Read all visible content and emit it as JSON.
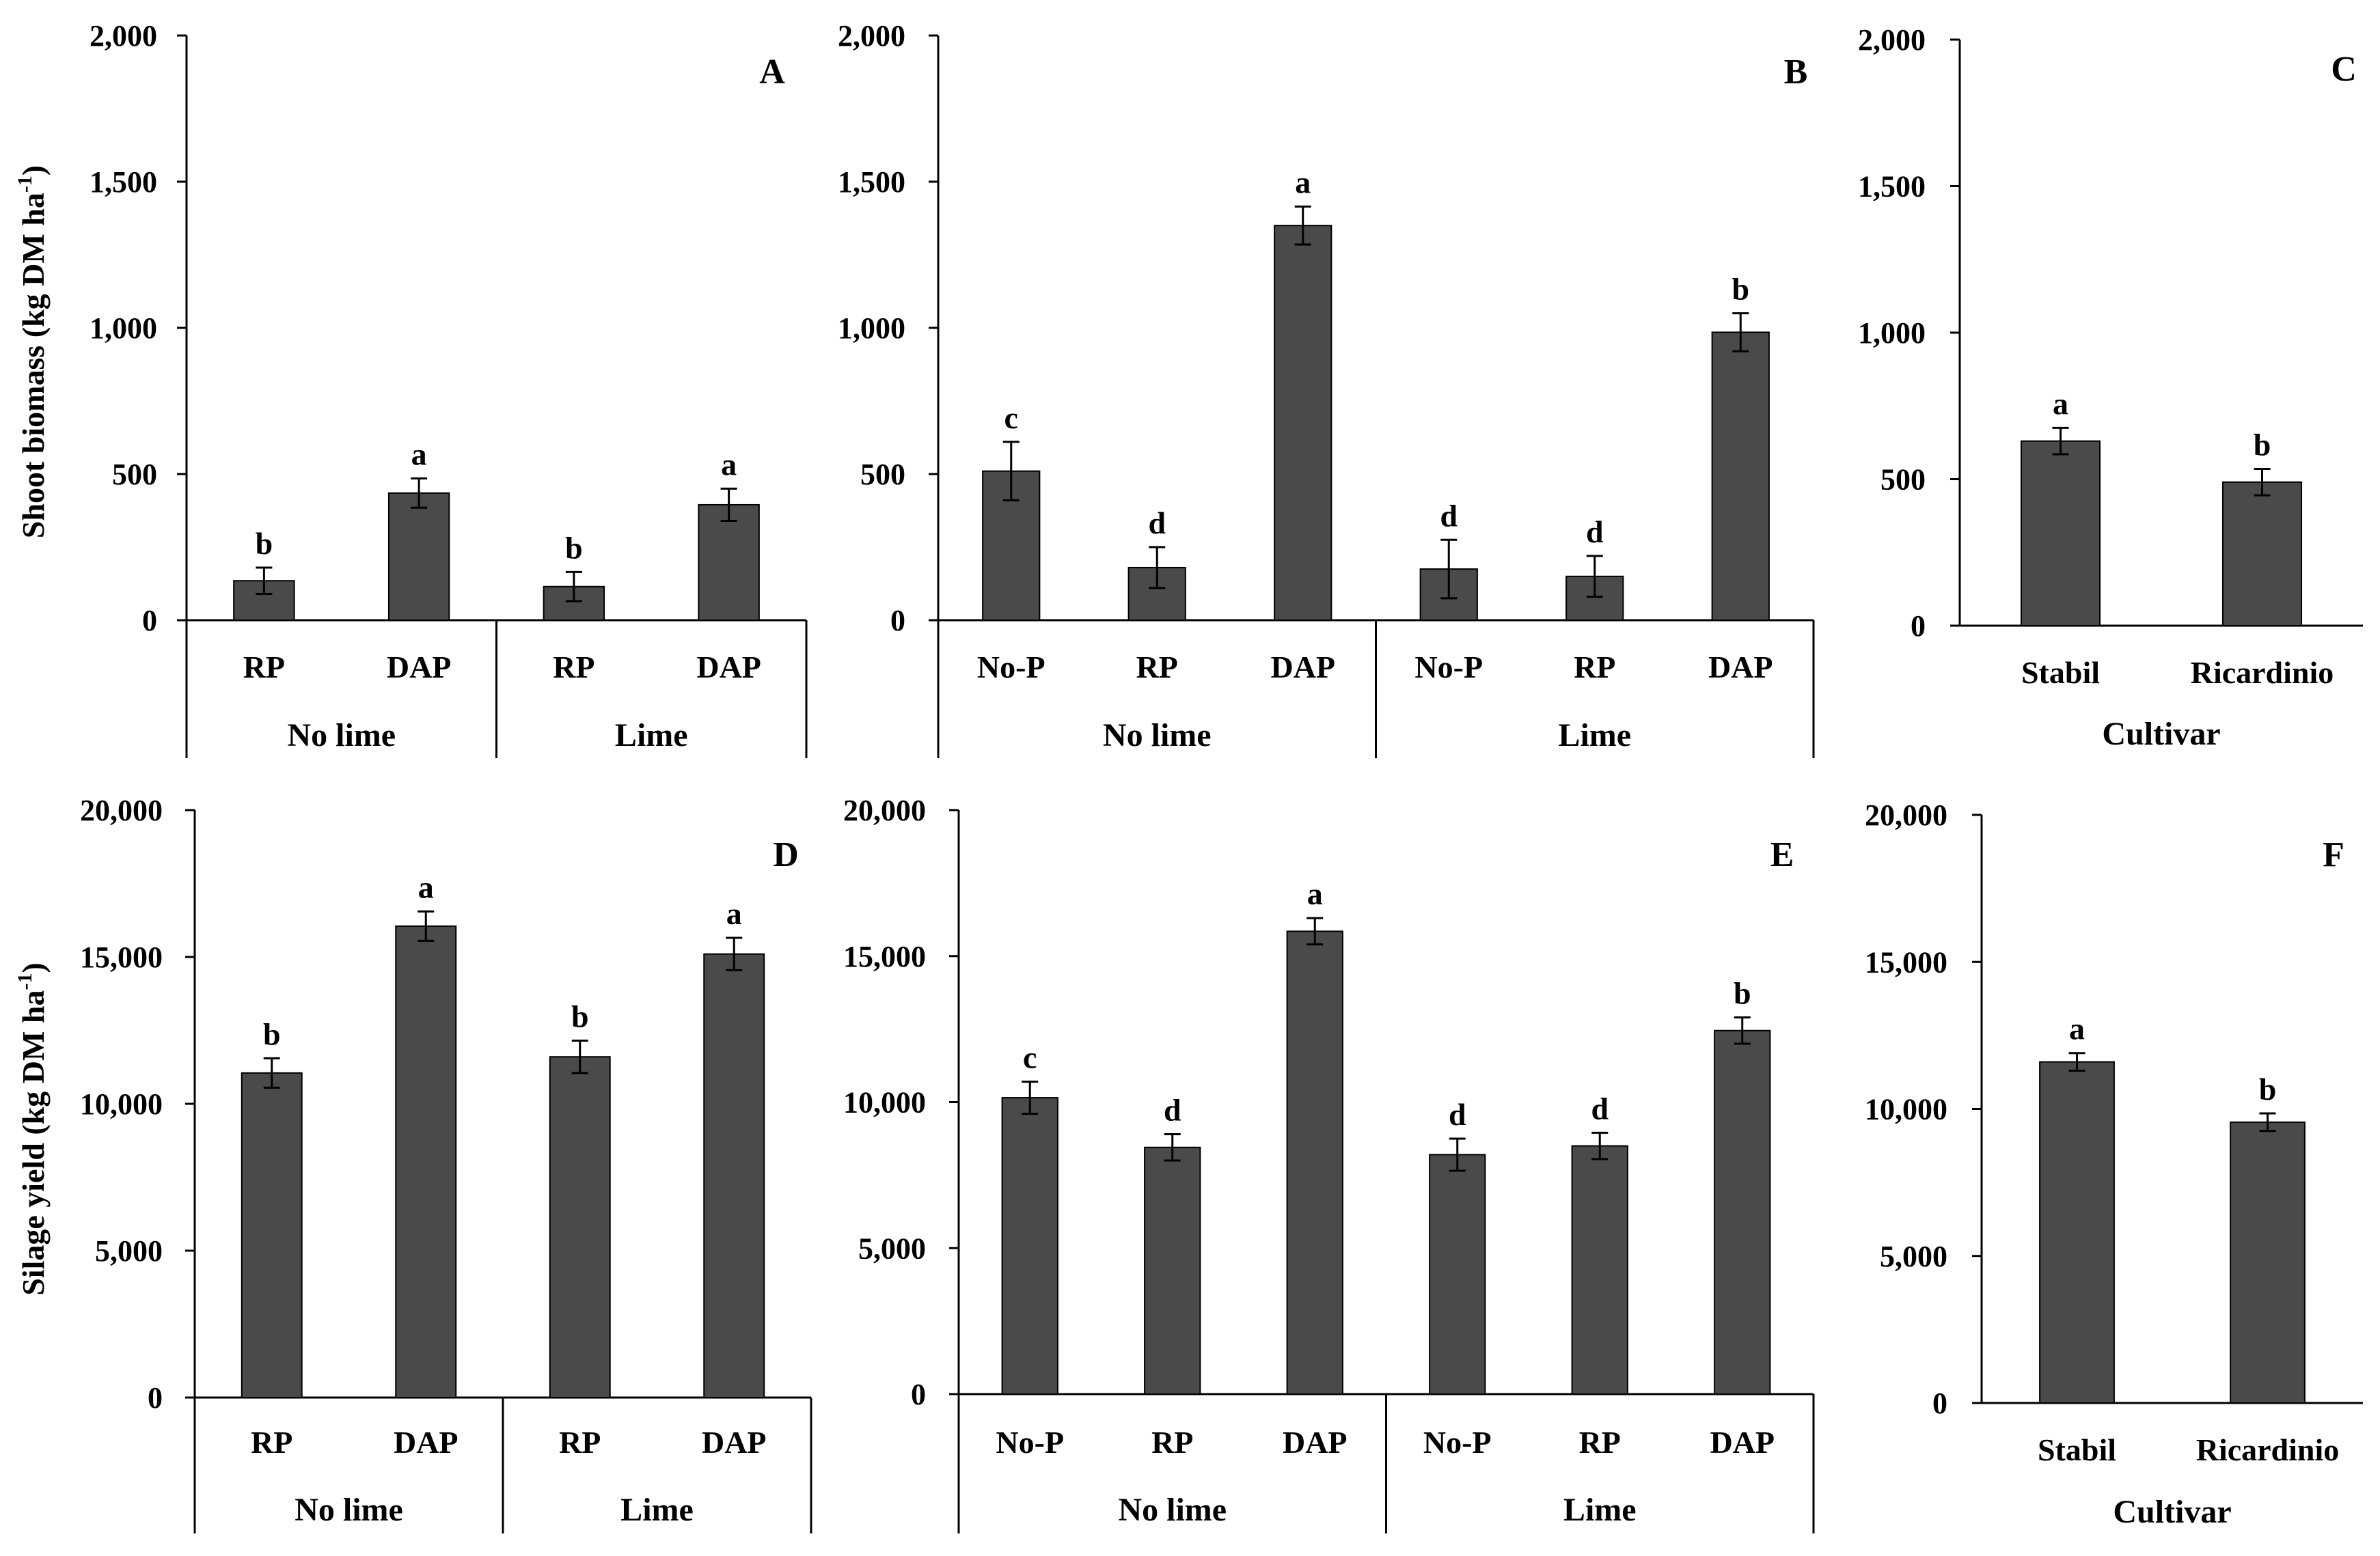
{
  "figure": {
    "ylabel_top": "Shoot biomass (kg DM ha",
    "ylabel_bottom": "Silage yield (kg DM ha",
    "unit_superscript": "-1",
    "unit_close": ")"
  },
  "colors": {
    "bar": "#4a4a4a",
    "axis": "#000000"
  },
  "chart_data": [
    {
      "panel": "A",
      "type": "bar",
      "ylim": [
        0,
        2000
      ],
      "yticks": [
        "0",
        "500",
        "1,000",
        "1,500",
        "2,000"
      ],
      "categories": [
        "RP",
        "DAP",
        "RP",
        "DAP"
      ],
      "groups": [
        {
          "label": "No lime",
          "size": 2
        },
        {
          "label": "Lime",
          "size": 2
        }
      ],
      "values": [
        135,
        435,
        115,
        395
      ],
      "errors": [
        45,
        50,
        50,
        55
      ],
      "letters": [
        "b",
        "a",
        "b",
        "a"
      ],
      "xlabel": ""
    },
    {
      "panel": "B",
      "type": "bar",
      "ylim": [
        0,
        2000
      ],
      "yticks": [
        "0",
        "500",
        "1,000",
        "1,500",
        "2,000"
      ],
      "categories": [
        "No-P",
        "RP",
        "DAP",
        "No-P",
        "RP",
        "DAP"
      ],
      "groups": [
        {
          "label": "No lime",
          "size": 3
        },
        {
          "label": "Lime",
          "size": 3
        }
      ],
      "values": [
        510,
        180,
        1350,
        175,
        150,
        985
      ],
      "errors": [
        100,
        70,
        65,
        100,
        70,
        65
      ],
      "letters": [
        "c",
        "d",
        "a",
        "d",
        "d",
        "b"
      ],
      "xlabel": ""
    },
    {
      "panel": "C",
      "type": "bar",
      "ylim": [
        0,
        2000
      ],
      "yticks": [
        "0",
        "500",
        "1,000",
        "1,500",
        "2,000"
      ],
      "categories": [
        "Stabil",
        "Ricardinio"
      ],
      "groups": [],
      "values": [
        630,
        490
      ],
      "errors": [
        45,
        45
      ],
      "letters": [
        "a",
        "b"
      ],
      "xlabel": "Cultivar"
    },
    {
      "panel": "D",
      "type": "bar",
      "ylim": [
        0,
        20000
      ],
      "yticks": [
        "0",
        "5,000",
        "10,000",
        "15,000",
        "20,000"
      ],
      "categories": [
        "RP",
        "DAP",
        "RP",
        "DAP"
      ],
      "groups": [
        {
          "label": "No lime",
          "size": 2
        },
        {
          "label": "Lime",
          "size": 2
        }
      ],
      "values": [
        11050,
        16050,
        11600,
        15100
      ],
      "errors": [
        500,
        500,
        550,
        550
      ],
      "letters": [
        "b",
        "a",
        "b",
        "a"
      ],
      "xlabel": ""
    },
    {
      "panel": "E",
      "type": "bar",
      "ylim": [
        0,
        20000
      ],
      "yticks": [
        "0",
        "5,000",
        "10,000",
        "15,000",
        "20,000"
      ],
      "categories": [
        "No-P",
        "RP",
        "DAP",
        "No-P",
        "RP",
        "DAP"
      ],
      "groups": [
        {
          "label": "No lime",
          "size": 3
        },
        {
          "label": "Lime",
          "size": 3
        }
      ],
      "values": [
        10150,
        8450,
        15850,
        8200,
        8500,
        12450
      ],
      "errors": [
        550,
        450,
        450,
        550,
        450,
        450
      ],
      "letters": [
        "c",
        "d",
        "a",
        "d",
        "d",
        "b"
      ],
      "xlabel": ""
    },
    {
      "panel": "F",
      "type": "bar",
      "ylim": [
        0,
        20000
      ],
      "yticks": [
        "0",
        "5,000",
        "10,000",
        "15,000",
        "20,000"
      ],
      "categories": [
        "Stabil",
        "Ricardinio"
      ],
      "groups": [],
      "values": [
        11600,
        9550
      ],
      "errors": [
        300,
        300
      ],
      "letters": [
        "a",
        "b"
      ],
      "xlabel": "Cultivar"
    }
  ]
}
